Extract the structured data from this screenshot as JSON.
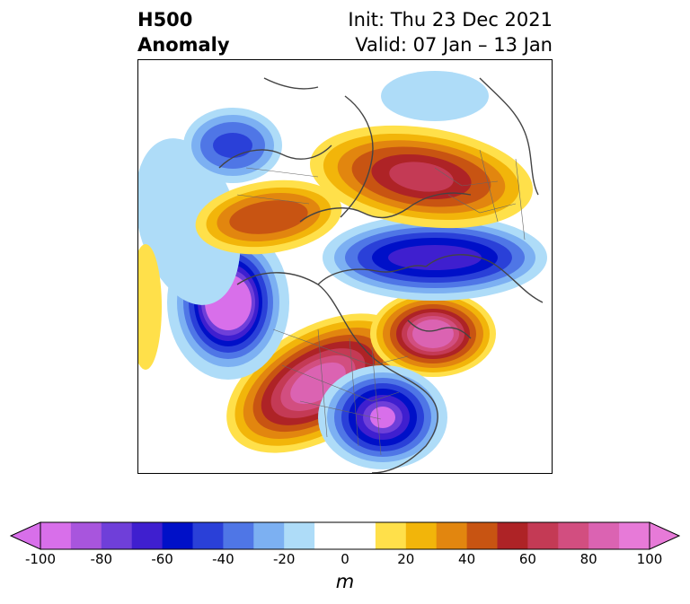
{
  "title": {
    "left_line1": "H500",
    "left_line2": "Anomaly",
    "right_line1": "Init: Thu 23 Dec 2021",
    "right_line2": "Valid: 07 Jan – 13 Jan"
  },
  "colorbar": {
    "units": "m",
    "ticks": [
      "-100",
      "-80",
      "-60",
      "-40",
      "-20",
      "0",
      "20",
      "40",
      "60",
      "80",
      "100"
    ],
    "range": [
      -100,
      100
    ],
    "colors": [
      "#d86fea",
      "#a855dd",
      "#6f3fd9",
      "#3f1fcf",
      "#0010c8",
      "#2a40d8",
      "#4f76e6",
      "#7cb0f2",
      "#aedcf8",
      "#ffffff",
      "#ffffff",
      "#ffe04a",
      "#f2b50a",
      "#e2860f",
      "#c85412",
      "#ae2326",
      "#c43a55",
      "#d24e80",
      "#db63b2",
      "#e77ad8"
    ]
  },
  "map": {
    "projection": "north-polar-stereographic",
    "field": "500 hPa height anomaly",
    "features": [
      {
        "label": "",
        "kind": "positive",
        "region": "North America (west-central)",
        "peak_m": 100
      },
      {
        "label": "",
        "kind": "negative",
        "region": "Northeast Pacific / Gulf of Alaska",
        "peak_m": -100
      },
      {
        "label": "",
        "kind": "negative",
        "region": "Eastern North America / Labrador",
        "peak_m": -100
      },
      {
        "label": "",
        "kind": "positive",
        "region": "North Atlantic / Greenland",
        "peak_m": 100
      },
      {
        "label": "",
        "kind": "negative",
        "region": "Arctic Ocean / North Pole",
        "peak_m": -70
      },
      {
        "label": "",
        "kind": "positive",
        "region": "Siberia",
        "peak_m": 50
      },
      {
        "label": "",
        "kind": "positive",
        "region": "Europe / Scandinavia",
        "peak_m": 60
      },
      {
        "label": "",
        "kind": "negative",
        "region": "Central Asia",
        "peak_m": -50
      }
    ]
  }
}
